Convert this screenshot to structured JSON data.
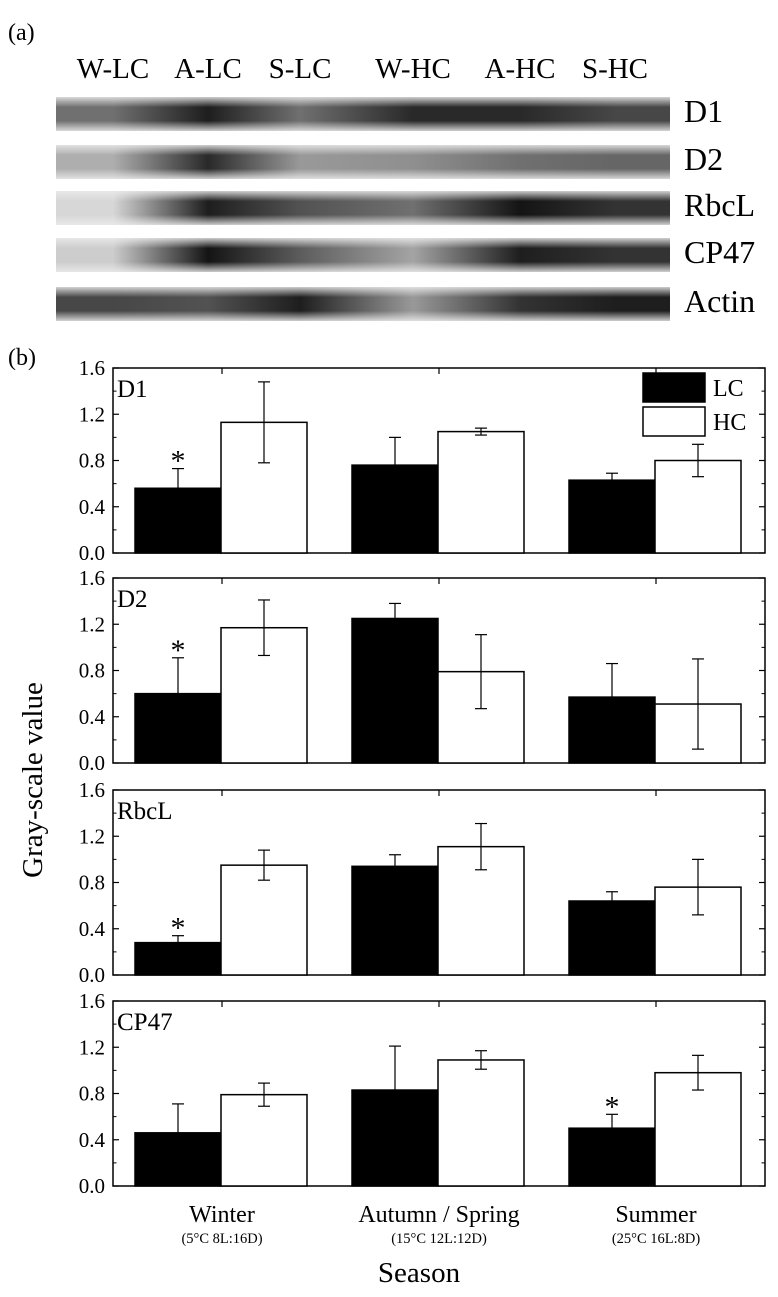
{
  "panel_a": {
    "label": "(a)",
    "lanes": [
      "W-LC",
      "A-LC",
      "S-LC",
      "W-HC",
      "A-HC",
      "S-HC"
    ],
    "proteins": [
      {
        "name": "D1",
        "intensity": [
          0.55,
          0.95,
          0.55,
          0.9,
          0.9,
          0.75
        ]
      },
      {
        "name": "D2",
        "intensity": [
          0.25,
          0.9,
          0.35,
          0.4,
          0.55,
          0.6
        ]
      },
      {
        "name": "RbcL",
        "intensity": [
          0.05,
          0.95,
          0.7,
          0.55,
          1.0,
          0.85
        ]
      },
      {
        "name": "CP47",
        "intensity": [
          0.1,
          1.0,
          0.65,
          0.3,
          0.95,
          0.85
        ]
      },
      {
        "name": "Actin",
        "intensity": [
          0.75,
          0.7,
          0.95,
          0.35,
          0.85,
          0.95
        ]
      }
    ]
  },
  "panel_b": {
    "label": "(b)"
  },
  "chart_data": {
    "type": "bar",
    "ylabel": "Gray-scale value",
    "xlabel": "Season",
    "ylim": [
      0,
      1.6
    ],
    "yticks": [
      "0.0",
      "0.4",
      "0.8",
      "1.2",
      "1.6"
    ],
    "categories": [
      "Winter",
      "Autumn / Spring",
      "Summer"
    ],
    "category_sublabels": [
      "(5°C 8L:16D)",
      "(15°C 12L:12D)",
      "(25°C 16L:8D)"
    ],
    "legend": {
      "position": "top-right",
      "entries": [
        {
          "name": "LC",
          "color": "#000000"
        },
        {
          "name": "HC",
          "color": "#ffffff"
        }
      ]
    },
    "panels": [
      {
        "name": "D1",
        "series": [
          {
            "name": "LC",
            "values": [
              0.56,
              0.76,
              0.63
            ],
            "errors": [
              0.17,
              0.24,
              0.06
            ],
            "significant": [
              true,
              false,
              false
            ]
          },
          {
            "name": "HC",
            "values": [
              1.13,
              1.05,
              0.8
            ],
            "errors": [
              0.35,
              0.03,
              0.14
            ],
            "significant": [
              false,
              false,
              false
            ]
          }
        ]
      },
      {
        "name": "D2",
        "series": [
          {
            "name": "LC",
            "values": [
              0.6,
              1.25,
              0.57
            ],
            "errors": [
              0.31,
              0.13,
              0.29
            ],
            "significant": [
              true,
              false,
              false
            ]
          },
          {
            "name": "HC",
            "values": [
              1.17,
              0.79,
              0.51
            ],
            "errors": [
              0.24,
              0.32,
              0.39
            ],
            "significant": [
              false,
              false,
              false
            ]
          }
        ]
      },
      {
        "name": "RbcL",
        "series": [
          {
            "name": "LC",
            "values": [
              0.28,
              0.94,
              0.64
            ],
            "errors": [
              0.06,
              0.1,
              0.08
            ],
            "significant": [
              true,
              false,
              false
            ]
          },
          {
            "name": "HC",
            "values": [
              0.95,
              1.11,
              0.76
            ],
            "errors": [
              0.13,
              0.2,
              0.24
            ],
            "significant": [
              false,
              false,
              false
            ]
          }
        ]
      },
      {
        "name": "CP47",
        "series": [
          {
            "name": "LC",
            "values": [
              0.46,
              0.83,
              0.5
            ],
            "errors": [
              0.25,
              0.38,
              0.12
            ],
            "significant": [
              false,
              false,
              true
            ]
          },
          {
            "name": "HC",
            "values": [
              0.79,
              1.09,
              0.98
            ],
            "errors": [
              0.1,
              0.08,
              0.15
            ],
            "significant": [
              false,
              false,
              false
            ]
          }
        ]
      }
    ],
    "significance_marker": "*"
  }
}
